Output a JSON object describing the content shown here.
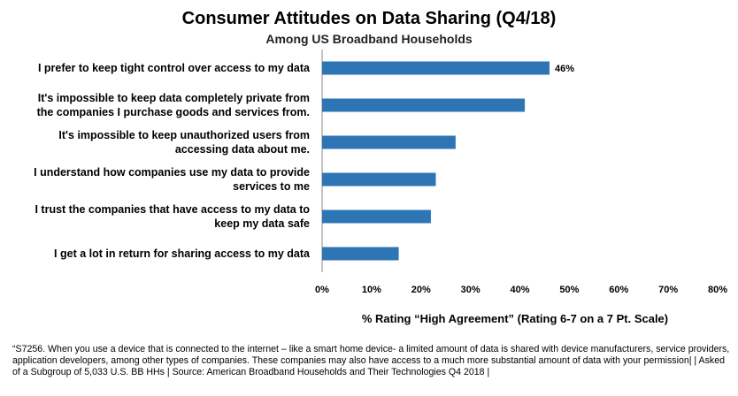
{
  "chart_data": {
    "type": "bar",
    "orientation": "horizontal",
    "title": "Consumer Attitudes on Data Sharing (Q4/18)",
    "subtitle": "Among US Broadband Households",
    "xlabel": "% Rating “High Agreement” (Rating 6-7 on a 7 Pt. Scale)",
    "ylabel": "",
    "xlim": [
      0,
      80
    ],
    "ticks": [
      "0%",
      "10%",
      "20%",
      "30%",
      "40%",
      "50%",
      "60%",
      "70%",
      "80%"
    ],
    "categories": [
      [
        "I prefer to keep tight control over access to my data"
      ],
      [
        "It's impossible to keep data completely private from",
        "the companies I purchase goods and services from."
      ],
      [
        "It's impossible to keep unauthorized users from",
        "accessing data about me."
      ],
      [
        "I understand how companies use my data to provide",
        "services to me"
      ],
      [
        "I trust the companies that have access to my data to",
        "keep my data safe"
      ],
      [
        "I get a lot in return for sharing access to my data"
      ]
    ],
    "values": [
      46,
      41,
      27,
      23,
      22,
      15.5
    ],
    "data_labels": [
      "46%",
      null,
      null,
      null,
      null,
      null
    ],
    "bar_color": "#2E75B6",
    "grid": false,
    "legend": "none"
  },
  "footnote": "“S7256. When you use a device that is connected to the internet – like a smart home device- a limited amount of data is shared with device manufacturers, service providers, application developers, among other types of companies. These companies may also have access to a much more substantial amount of data with your permission| | Asked of a Subgroup of 5,033 U.S. BB HHs | Source: American Broadband Households and Their Technologies Q4 2018 |"
}
